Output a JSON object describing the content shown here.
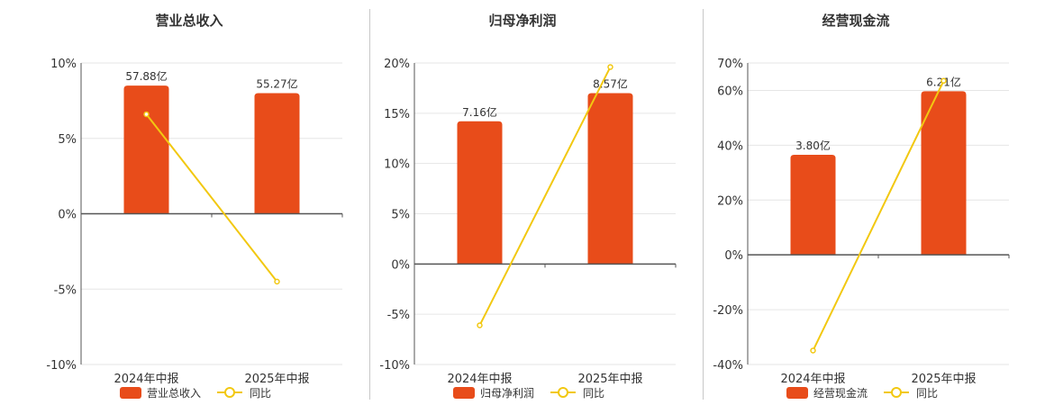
{
  "colors": {
    "bar": "#E84C1A",
    "line": "#F2C811",
    "grid": "#e6e6e6",
    "axis": "#555555"
  },
  "chart_data": [
    {
      "type": "bar",
      "title": "营业总收入",
      "categories": [
        "2024年中报",
        "2025年中报"
      ],
      "series": [
        {
          "name": "营业总收入",
          "type": "bar",
          "values": [
            8.5,
            8.0
          ],
          "labels": [
            "57.88亿",
            "55.27亿"
          ]
        },
        {
          "name": "同比",
          "type": "line",
          "values": [
            6.6,
            -4.5
          ]
        }
      ],
      "yticks": [
        {
          "value": 10,
          "label": "10%"
        },
        {
          "value": 5,
          "label": "5%"
        },
        {
          "value": 0,
          "label": "0%"
        },
        {
          "value": -5,
          "label": "-5%"
        },
        {
          "value": -10,
          "label": "-10%"
        }
      ],
      "ylim": [
        -10,
        10
      ],
      "legend": "bottom"
    },
    {
      "type": "bar",
      "title": "归母净利润",
      "categories": [
        "2024年中报",
        "2025年中报"
      ],
      "series": [
        {
          "name": "归母净利润",
          "type": "bar",
          "values": [
            14.2,
            17.0
          ],
          "labels": [
            "7.16亿",
            "8.57亿"
          ]
        },
        {
          "name": "同比",
          "type": "line",
          "values": [
            -6.1,
            19.6
          ]
        }
      ],
      "yticks": [
        {
          "value": 20,
          "label": "20%"
        },
        {
          "value": 15,
          "label": "15%"
        },
        {
          "value": 10,
          "label": "10%"
        },
        {
          "value": 5,
          "label": "5%"
        },
        {
          "value": 0,
          "label": "0%"
        },
        {
          "value": -5,
          "label": "-5%"
        },
        {
          "value": -10,
          "label": "-10%"
        }
      ],
      "ylim": [
        -10,
        20
      ],
      "legend": "bottom"
    },
    {
      "type": "bar",
      "title": "经营现金流",
      "categories": [
        "2024年中报",
        "2025年中报"
      ],
      "series": [
        {
          "name": "经营现金流",
          "type": "bar",
          "values": [
            36.5,
            59.7
          ],
          "labels": [
            "3.80亿",
            "6.21亿"
          ]
        },
        {
          "name": "同比",
          "type": "line",
          "values": [
            -34.9,
            63.5
          ]
        }
      ],
      "yticks": [
        {
          "value": 70,
          "label": "70%"
        },
        {
          "value": 60,
          "label": "60%"
        },
        {
          "value": 40,
          "label": "40%"
        },
        {
          "value": 20,
          "label": "20%"
        },
        {
          "value": 0,
          "label": "0%"
        },
        {
          "value": -20,
          "label": "-20%"
        },
        {
          "value": -40,
          "label": "-40%"
        }
      ],
      "ylim": [
        -40,
        70
      ],
      "legend": "bottom"
    }
  ]
}
